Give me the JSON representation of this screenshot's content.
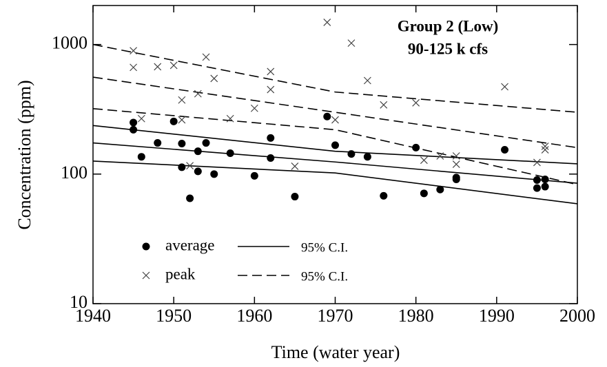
{
  "chart_data": {
    "type": "scatter",
    "log_y": true,
    "annotation": [
      "Group 2 (Low)",
      "90-125 k cfs"
    ],
    "xlabel": "Time (water year)",
    "ylabel": "Concentration (ppm)",
    "xlim": [
      1940,
      2000
    ],
    "xticks": [
      1940,
      1950,
      1960,
      1970,
      1980,
      1990,
      2000
    ],
    "ylim": [
      10,
      2000
    ],
    "yticks": [
      10,
      100,
      1000
    ],
    "series": [
      {
        "name": "average",
        "marker": "circle",
        "color": "#000000",
        "x": [
          1945,
          1945,
          1946,
          1948,
          1950,
          1951,
          1951,
          1952,
          1953,
          1953,
          1954,
          1955,
          1957,
          1960,
          1962,
          1962,
          1965,
          1969,
          1970,
          1972,
          1974,
          1976,
          1980,
          1981,
          1983,
          1985,
          1985,
          1991,
          1995,
          1995,
          1996,
          1996
        ],
        "values": [
          250,
          220,
          136,
          174,
          255,
          172,
          113,
          65,
          105,
          150,
          174,
          100,
          145,
          97,
          190,
          133,
          67,
          278,
          167,
          143,
          136,
          68,
          160,
          71,
          76,
          91,
          94,
          154,
          90,
          78,
          91,
          80
        ]
      },
      {
        "name": "peak",
        "marker": "x",
        "color": "#444444",
        "x": [
          1945,
          1945,
          1946,
          1948,
          1950,
          1951,
          1951,
          1952,
          1953,
          1954,
          1955,
          1957,
          1960,
          1962,
          1962,
          1965,
          1969,
          1970,
          1972,
          1974,
          1976,
          1980,
          1981,
          1983,
          1985,
          1985,
          1991,
          1995,
          1996,
          1996
        ],
        "values": [
          895,
          666,
          268,
          674,
          690,
          373,
          262,
          116,
          417,
          800,
          547,
          268,
          322,
          618,
          449,
          115,
          1483,
          262,
          1025,
          527,
          342,
          355,
          128,
          138,
          138,
          119,
          472,
          123,
          164,
          154
        ]
      }
    ],
    "fits": [
      {
        "name": "95% C.I.",
        "dashed": false,
        "x": [
          1940,
          1970,
          2000
        ],
        "lines": [
          [
            237,
            150,
            120
          ],
          [
            174,
            124,
            85
          ],
          [
            126,
            102,
            59
          ]
        ]
      },
      {
        "name": "95% C.I.",
        "dashed": true,
        "x": [
          1940,
          1970,
          2000
        ],
        "lines": [
          [
            1000,
            430,
            300
          ],
          [
            560,
            300,
            160
          ],
          [
            320,
            220,
            83
          ]
        ]
      }
    ]
  }
}
